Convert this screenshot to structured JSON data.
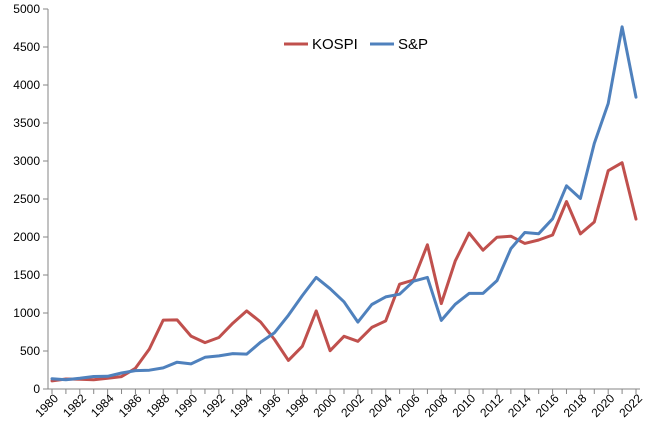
{
  "chart_data": {
    "type": "line",
    "title": "",
    "xlabel": "",
    "ylabel": "",
    "ylim": [
      0,
      5000
    ],
    "yticks": [
      0,
      500,
      1000,
      1500,
      2000,
      2500,
      3000,
      3500,
      4000,
      4500,
      5000
    ],
    "xlim": [
      1980,
      2022
    ],
    "xticks": [
      "1980",
      "1982",
      "1984",
      "1986",
      "1988",
      "1990",
      "1992",
      "1994",
      "1996",
      "1998",
      "2000",
      "2002",
      "2004",
      "2006",
      "2008",
      "2010",
      "2012",
      "2014",
      "2016",
      "2018",
      "2020",
      "2022"
    ],
    "grid": false,
    "legend_position": "top-center",
    "x": [
      1980,
      1981,
      1982,
      1983,
      1984,
      1985,
      1986,
      1987,
      1988,
      1989,
      1990,
      1991,
      1992,
      1993,
      1994,
      1995,
      1996,
      1997,
      1998,
      1999,
      2000,
      2001,
      2002,
      2003,
      2004,
      2005,
      2006,
      2007,
      2008,
      2009,
      2010,
      2011,
      2012,
      2013,
      2014,
      2015,
      2016,
      2017,
      2018,
      2019,
      2020,
      2021,
      2022
    ],
    "series": [
      {
        "name": "KOSPI",
        "color": "#c0504d",
        "values": [
          106,
          131,
          128,
          122,
          142,
          163,
          272,
          525,
          907,
          909,
          696,
          610,
          678,
          866,
          1027,
          882,
          651,
          376,
          562,
          1028,
          504,
          693,
          627,
          810,
          896,
          1379,
          1434,
          1897,
          1124,
          1683,
          2051,
          1826,
          1997,
          2011,
          1916,
          1961,
          2026,
          2467,
          2041,
          2198,
          2873,
          2978,
          2236
        ]
      },
      {
        "name": "S&P",
        "color": "#4f81bd",
        "values": [
          136,
          122,
          141,
          165,
          167,
          211,
          242,
          247,
          278,
          353,
          330,
          417,
          436,
          466,
          459,
          616,
          741,
          970,
          1229,
          1469,
          1320,
          1148,
          880,
          1112,
          1212,
          1248,
          1418,
          1468,
          903,
          1115,
          1258,
          1258,
          1426,
          1848,
          2059,
          2044,
          2239,
          2674,
          2507,
          3231,
          3756,
          4766,
          3840
        ]
      }
    ]
  }
}
